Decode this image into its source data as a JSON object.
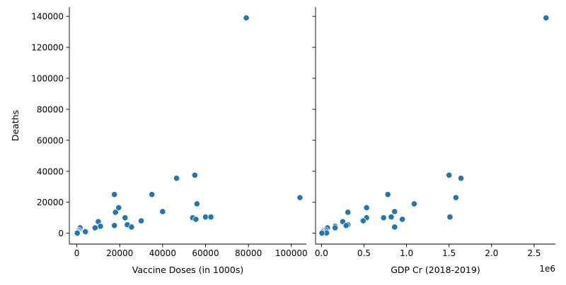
{
  "chart_data": [
    {
      "type": "scatter",
      "xlabel": "Vaccine Doses (in 1000s)",
      "ylabel": "Deaths",
      "xlim": [
        -3500,
        107000
      ],
      "ylim": [
        -7000,
        146000
      ],
      "xticks": [
        0,
        20000,
        40000,
        60000,
        80000,
        100000
      ],
      "xtick_labels": [
        "0",
        "20000",
        "40000",
        "60000",
        "80000",
        "100000"
      ],
      "yticks": [
        0,
        20000,
        40000,
        60000,
        80000,
        100000,
        120000,
        140000
      ],
      "ytick_labels": [
        "0",
        "20000",
        "40000",
        "60000",
        "80000",
        "100000",
        "120000",
        "140000"
      ],
      "marker_color": "#1f77b4",
      "points": [
        {
          "x": 79000,
          "y": 139000
        },
        {
          "x": 104000,
          "y": 23000
        },
        {
          "x": 55000,
          "y": 37500
        },
        {
          "x": 46500,
          "y": 35500
        },
        {
          "x": 17500,
          "y": 25000
        },
        {
          "x": 35000,
          "y": 25000
        },
        {
          "x": 56000,
          "y": 19000
        },
        {
          "x": 19500,
          "y": 16500
        },
        {
          "x": 40000,
          "y": 14000
        },
        {
          "x": 18000,
          "y": 13500
        },
        {
          "x": 54000,
          "y": 10000
        },
        {
          "x": 60000,
          "y": 10500
        },
        {
          "x": 62500,
          "y": 10500
        },
        {
          "x": 22500,
          "y": 10000
        },
        {
          "x": 55500,
          "y": 9000
        },
        {
          "x": 30000,
          "y": 8000
        },
        {
          "x": 10000,
          "y": 7500
        },
        {
          "x": 23500,
          "y": 5500
        },
        {
          "x": 17500,
          "y": 5000
        },
        {
          "x": 11000,
          "y": 4500
        },
        {
          "x": 25500,
          "y": 4000
        },
        {
          "x": 8500,
          "y": 3500
        },
        {
          "x": 1500,
          "y": 3500
        },
        {
          "x": 1000,
          "y": 2000
        },
        {
          "x": 4000,
          "y": 1000
        },
        {
          "x": 500,
          "y": 1500
        },
        {
          "x": 300,
          "y": 800
        },
        {
          "x": 100,
          "y": 300
        },
        {
          "x": 200,
          "y": 100
        }
      ]
    },
    {
      "type": "scatter",
      "xlabel": "GDP Cr (2018-2019)",
      "ylabel": "",
      "offset_text": "1e6",
      "xlim": [
        -0.07,
        2.75
      ],
      "ylim": [
        -7000,
        146000
      ],
      "xticks": [
        0.0,
        0.5,
        1.0,
        1.5,
        2.0,
        2.5
      ],
      "xtick_labels": [
        "0.0",
        "0.5",
        "1.0",
        "1.5",
        "2.0",
        "2.5"
      ],
      "yticks": [
        0,
        20000,
        40000,
        60000,
        80000,
        100000,
        120000,
        140000
      ],
      "marker_color": "#1f77b4",
      "points": [
        {
          "x": 2.64,
          "y": 139000
        },
        {
          "x": 1.5,
          "y": 37500
        },
        {
          "x": 1.64,
          "y": 35500
        },
        {
          "x": 0.78,
          "y": 25000
        },
        {
          "x": 1.58,
          "y": 23000
        },
        {
          "x": 1.09,
          "y": 19000
        },
        {
          "x": 0.53,
          "y": 16500
        },
        {
          "x": 0.86,
          "y": 14000
        },
        {
          "x": 0.31,
          "y": 13500
        },
        {
          "x": 1.51,
          "y": 10500
        },
        {
          "x": 0.53,
          "y": 10000
        },
        {
          "x": 0.73,
          "y": 10000
        },
        {
          "x": 0.82,
          "y": 10500
        },
        {
          "x": 0.95,
          "y": 9000
        },
        {
          "x": 0.49,
          "y": 8000
        },
        {
          "x": 0.25,
          "y": 7500
        },
        {
          "x": 0.31,
          "y": 5500
        },
        {
          "x": 0.29,
          "y": 5000
        },
        {
          "x": 0.16,
          "y": 4500
        },
        {
          "x": 0.86,
          "y": 4000
        },
        {
          "x": 0.16,
          "y": 3500
        },
        {
          "x": 0.07,
          "y": 3500
        },
        {
          "x": 0.05,
          "y": 2000
        },
        {
          "x": 0.02,
          "y": 1500
        },
        {
          "x": 0.04,
          "y": 1000
        },
        {
          "x": 0.01,
          "y": 800
        },
        {
          "x": 0.03,
          "y": 300
        },
        {
          "x": 0.06,
          "y": 200
        },
        {
          "x": 0.005,
          "y": 100
        }
      ]
    }
  ]
}
